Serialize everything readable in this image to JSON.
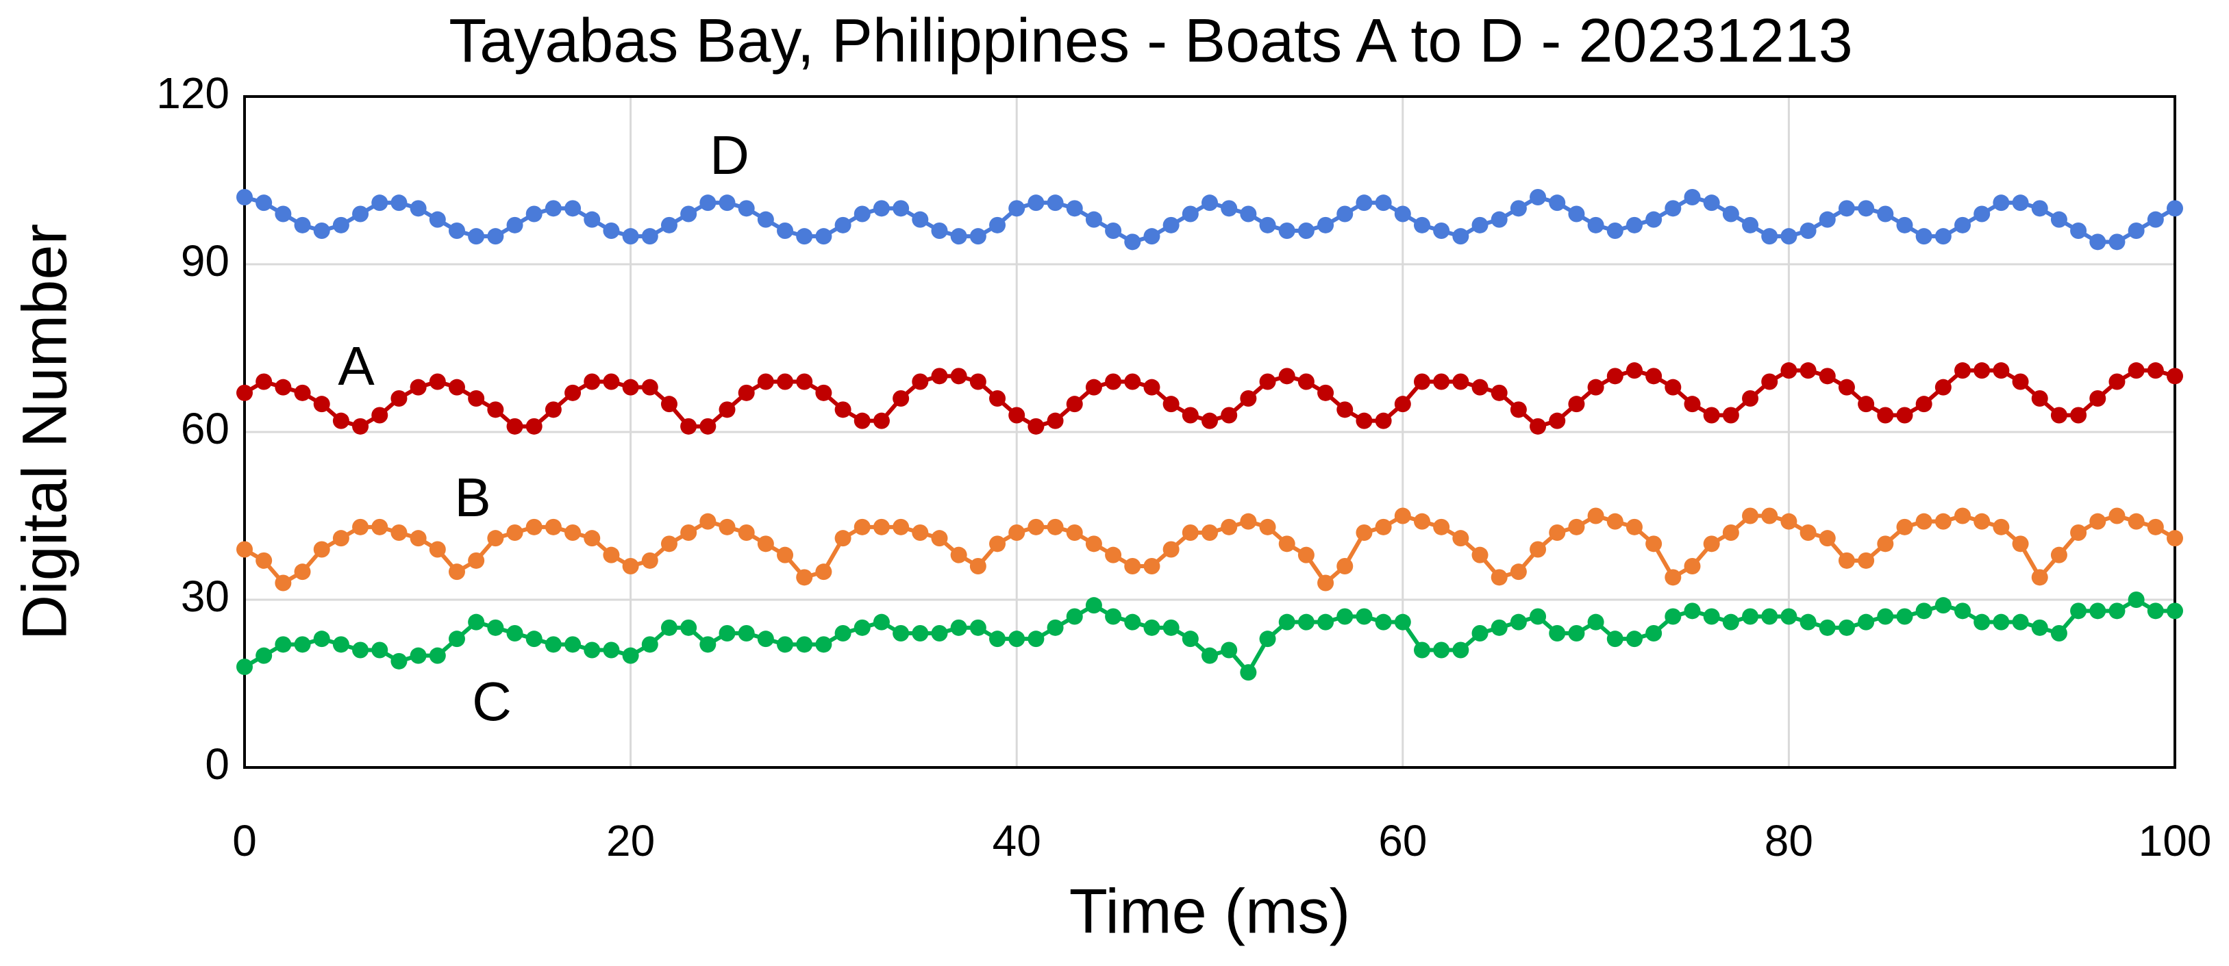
{
  "chart_data": {
    "type": "line",
    "title": "Tayabas Bay, Philippines - Boats A to D - 20231213",
    "x_label": "Time (ms)",
    "y_label": "Digital Number",
    "x": [
      0,
      1,
      2,
      3,
      4,
      5,
      6,
      7,
      8,
      9,
      10,
      11,
      12,
      13,
      14,
      15,
      16,
      17,
      18,
      19,
      20,
      21,
      22,
      23,
      24,
      25,
      26,
      27,
      28,
      29,
      30,
      31,
      32,
      33,
      34,
      35,
      36,
      37,
      38,
      39,
      40,
      41,
      42,
      43,
      44,
      45,
      46,
      47,
      48,
      49,
      50,
      51,
      52,
      53,
      54,
      55,
      56,
      57,
      58,
      59,
      60,
      61,
      62,
      63,
      64,
      65,
      66,
      67,
      68,
      69,
      70,
      71,
      72,
      73,
      74,
      75,
      76,
      77,
      78,
      79,
      80,
      81,
      82,
      83,
      84,
      85,
      86,
      87,
      88,
      89,
      90,
      91,
      92,
      93,
      94,
      95,
      96,
      97,
      98,
      99,
      100
    ],
    "series": [
      {
        "name": "A",
        "color": "#c00000",
        "values": [
          67,
          69,
          68,
          67,
          65,
          62,
          61,
          63,
          66,
          68,
          69,
          68,
          66,
          64,
          61,
          61,
          64,
          67,
          69,
          69,
          68,
          68,
          65,
          61,
          61,
          64,
          67,
          69,
          69,
          69,
          67,
          64,
          62,
          62,
          66,
          69,
          70,
          70,
          69,
          66,
          63,
          61,
          62,
          65,
          68,
          69,
          69,
          68,
          65,
          63,
          62,
          63,
          66,
          69,
          70,
          69,
          67,
          64,
          62,
          62,
          65,
          69,
          69,
          69,
          68,
          67,
          64,
          61,
          62,
          65,
          68,
          70,
          71,
          70,
          68,
          65,
          63,
          63,
          66,
          69,
          71,
          71,
          70,
          68,
          65,
          63,
          63,
          65,
          68,
          71,
          71,
          71,
          69,
          66,
          63,
          63,
          66,
          69,
          71,
          71,
          70
        ]
      },
      {
        "name": "B",
        "color": "#ed7d31",
        "values": [
          39,
          37,
          33,
          35,
          39,
          41,
          43,
          43,
          42,
          41,
          39,
          35,
          37,
          41,
          42,
          43,
          43,
          42,
          41,
          38,
          36,
          37,
          40,
          42,
          44,
          43,
          42,
          40,
          38,
          34,
          35,
          41,
          43,
          43,
          43,
          42,
          41,
          38,
          36,
          40,
          42,
          43,
          43,
          42,
          40,
          38,
          36,
          36,
          39,
          42,
          42,
          43,
          44,
          43,
          40,
          38,
          33,
          36,
          42,
          43,
          45,
          44,
          43,
          41,
          38,
          34,
          35,
          39,
          42,
          43,
          45,
          44,
          43,
          40,
          34,
          36,
          40,
          42,
          45,
          45,
          44,
          42,
          41,
          37,
          37,
          40,
          43,
          44,
          44,
          45,
          44,
          43,
          40,
          34,
          38,
          42,
          44,
          45,
          44,
          43,
          41
        ]
      },
      {
        "name": "C",
        "color": "#00b050",
        "values": [
          18,
          20,
          22,
          22,
          23,
          22,
          21,
          21,
          19,
          20,
          20,
          23,
          26,
          25,
          24,
          23,
          22,
          22,
          21,
          21,
          20,
          22,
          25,
          25,
          22,
          24,
          24,
          23,
          22,
          22,
          22,
          24,
          25,
          26,
          24,
          24,
          24,
          25,
          25,
          23,
          23,
          23,
          25,
          27,
          29,
          27,
          26,
          25,
          25,
          23,
          20,
          21,
          17,
          23,
          26,
          26,
          26,
          27,
          27,
          26,
          26,
          21,
          21,
          21,
          24,
          25,
          26,
          27,
          24,
          24,
          26,
          23,
          23,
          24,
          27,
          28,
          27,
          26,
          27,
          27,
          27,
          26,
          25,
          25,
          26,
          27,
          27,
          28,
          29,
          28,
          26,
          26,
          26,
          25,
          24,
          28,
          28,
          28,
          30,
          28,
          28
        ]
      },
      {
        "name": "D",
        "color": "#4a7bd9",
        "values": [
          102,
          101,
          99,
          97,
          96,
          97,
          99,
          101,
          101,
          100,
          98,
          96,
          95,
          95,
          97,
          99,
          100,
          100,
          98,
          96,
          95,
          95,
          97,
          99,
          101,
          101,
          100,
          98,
          96,
          95,
          95,
          97,
          99,
          100,
          100,
          98,
          96,
          95,
          95,
          97,
          100,
          101,
          101,
          100,
          98,
          96,
          94,
          95,
          97,
          99,
          101,
          100,
          99,
          97,
          96,
          96,
          97,
          99,
          101,
          101,
          99,
          97,
          96,
          95,
          97,
          98,
          100,
          102,
          101,
          99,
          97,
          96,
          97,
          98,
          100,
          102,
          101,
          99,
          97,
          95,
          95,
          96,
          98,
          100,
          100,
          99,
          97,
          95,
          95,
          97,
          99,
          101,
          101,
          100,
          98,
          96,
          94,
          94,
          96,
          98,
          100
        ]
      }
    ],
    "xlim": [
      0,
      100
    ],
    "xticks": [
      0,
      20,
      40,
      60,
      80,
      100
    ],
    "ylim": [
      0,
      120
    ],
    "yticks": [
      0,
      30,
      60,
      90,
      120
    ],
    "grid": true
  }
}
